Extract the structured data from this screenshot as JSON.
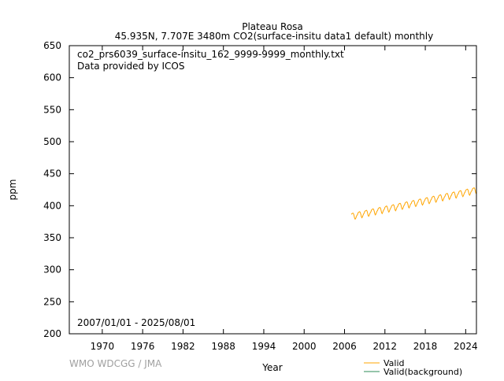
{
  "chart_data": {
    "type": "line",
    "title": "Plateau Rosa",
    "subtitle": "45.935N, 7.707E 3480m    CO2(surface-insitu data1 default) monthly",
    "xlabel": "Year",
    "ylabel": "ppm",
    "xlim": [
      1965.1,
      2025.6
    ],
    "ylim": [
      200,
      650
    ],
    "x_ticks": [
      "1970",
      "1976",
      "1982",
      "1988",
      "1994",
      "2000",
      "2006",
      "2012",
      "2018",
      "2024"
    ],
    "y_ticks": [
      "200",
      "250",
      "300",
      "350",
      "400",
      "450",
      "500",
      "550",
      "600",
      "650"
    ],
    "grid": false,
    "legend_position": "bottom-right",
    "annotations": {
      "filename": "co2_prs6039_surface-insitu_162_9999-9999_monthly.txt",
      "provider": "Data provided by ICOS",
      "date_range": "2007/01/01 - 2025/08/01",
      "watermark": "WMO WDCGG / JMA"
    },
    "series": [
      {
        "name": "Valid",
        "color": "#ffa500",
        "monthly_by_year": [
          {
            "year": 2007,
            "values": [
              386.5,
              387.5,
              388.0,
              388.5,
              387.5,
              384.5,
              380.5,
              379.0,
              380.5,
              383.0,
              385.0,
              386.0
            ]
          },
          {
            "year": 2008,
            "values": [
              388.7,
              389.7,
              390.2,
              390.7,
              389.7,
              386.7,
              382.7,
              381.2,
              382.7,
              385.2,
              387.2,
              388.2
            ]
          },
          {
            "year": 2009,
            "values": [
              390.9,
              391.9,
              392.4,
              392.9,
              391.9,
              388.9,
              384.9,
              383.4,
              384.9,
              387.4,
              389.4,
              390.4
            ]
          },
          {
            "year": 2010,
            "values": [
              393.1,
              394.1,
              394.6,
              395.1,
              394.1,
              391.1,
              387.1,
              385.6,
              387.1,
              389.6,
              391.6,
              392.6
            ]
          },
          {
            "year": 2011,
            "values": [
              395.3,
              396.3,
              396.8,
              397.3,
              396.3,
              393.3,
              389.3,
              387.8,
              389.3,
              391.8,
              393.8,
              394.8
            ]
          },
          {
            "year": 2012,
            "values": [
              397.5,
              398.5,
              399.0,
              399.5,
              398.5,
              395.5,
              391.5,
              390.0,
              391.5,
              394.0,
              396.0,
              397.0
            ]
          },
          {
            "year": 2013,
            "values": [
              399.7,
              400.7,
              401.2,
              401.7,
              400.7,
              397.7,
              393.7,
              392.2,
              393.7,
              396.2,
              398.2,
              399.2
            ]
          },
          {
            "year": 2014,
            "values": [
              401.9,
              402.9,
              403.4,
              403.9,
              402.9,
              399.9,
              395.9,
              394.4,
              395.9,
              398.4,
              400.4,
              401.4
            ]
          },
          {
            "year": 2015,
            "values": [
              404.1,
              405.1,
              405.6,
              406.1,
              405.1,
              402.1,
              398.1,
              396.6,
              398.1,
              400.6,
              402.6,
              403.6
            ]
          },
          {
            "year": 2016,
            "values": [
              406.3,
              407.3,
              407.8,
              408.3,
              407.3,
              404.3,
              400.3,
              398.8,
              400.3,
              402.8,
              404.8,
              405.8
            ]
          },
          {
            "year": 2017,
            "values": [
              408.5,
              409.5,
              410.0,
              410.5,
              409.5,
              406.5,
              402.5,
              401.0,
              402.5,
              405.0,
              407.0,
              408.0
            ]
          },
          {
            "year": 2018,
            "values": [
              410.7,
              411.7,
              412.2,
              412.7,
              411.7,
              408.7,
              404.7,
              403.2,
              404.7,
              407.2,
              409.2,
              410.2
            ]
          },
          {
            "year": 2019,
            "values": [
              412.9,
              413.9,
              414.4,
              414.9,
              413.9,
              410.9,
              406.9,
              405.4,
              406.9,
              409.4,
              411.4,
              412.4
            ]
          },
          {
            "year": 2020,
            "values": [
              415.1,
              416.1,
              416.6,
              417.1,
              416.1,
              413.1,
              409.1,
              407.6,
              409.1,
              411.6,
              413.6,
              414.6
            ]
          },
          {
            "year": 2021,
            "values": [
              417.3,
              418.3,
              418.8,
              419.3,
              418.3,
              415.3,
              411.3,
              409.8,
              411.3,
              413.8,
              415.8,
              416.8
            ]
          },
          {
            "year": 2022,
            "values": [
              419.5,
              420.5,
              421.0,
              421.5,
              420.5,
              417.5,
              413.5,
              412.0,
              413.5,
              416.0,
              418.0,
              419.0
            ]
          },
          {
            "year": 2023,
            "values": [
              421.7,
              422.7,
              423.2,
              423.7,
              422.7,
              419.7,
              415.7,
              414.2,
              415.7,
              418.2,
              420.2,
              421.2
            ]
          },
          {
            "year": 2024,
            "values": [
              423.9,
              424.9,
              425.4,
              425.9,
              424.9,
              421.9,
              417.9,
              416.4,
              417.9,
              420.4,
              422.4,
              423.4
            ]
          },
          {
            "year": 2025,
            "values": [
              426.1,
              427.1,
              427.6,
              428.1,
              427.1,
              424.1,
              420.1,
              418.6
            ]
          }
        ]
      },
      {
        "name": "Valid(background)",
        "color": "#2e8b57",
        "monthly_by_year": []
      }
    ]
  }
}
